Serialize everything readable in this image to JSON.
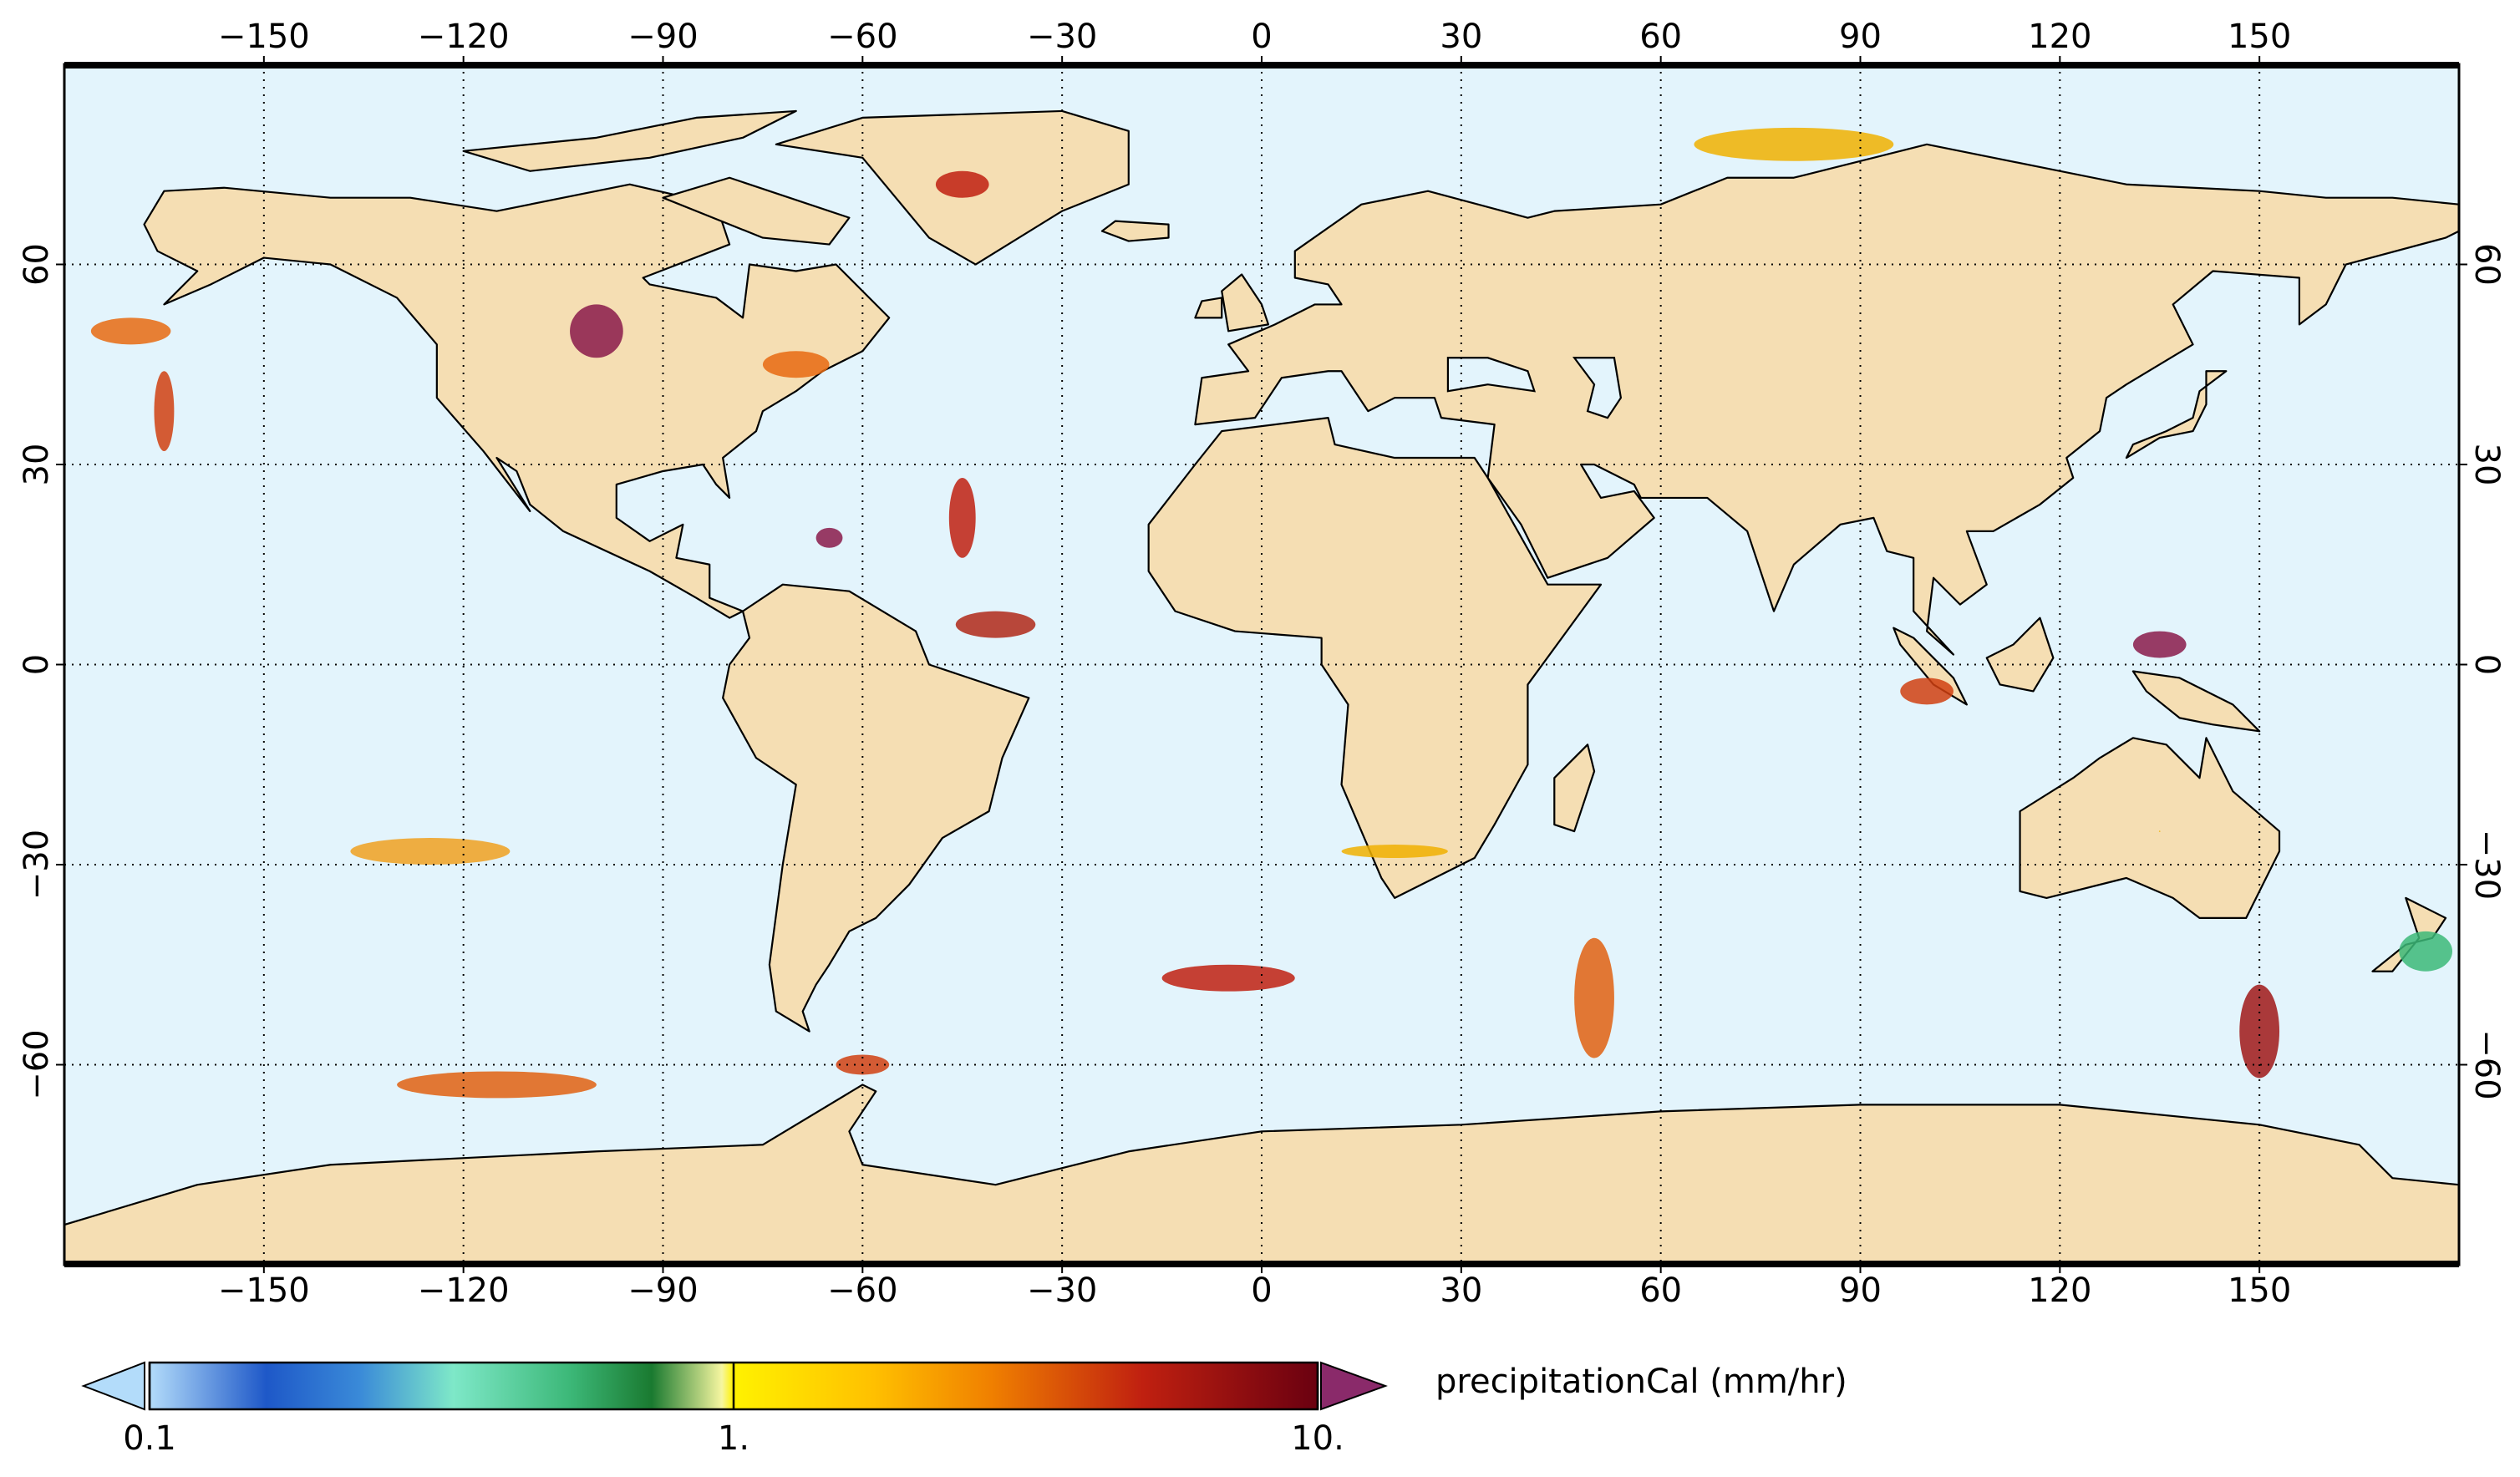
{
  "map": {
    "xlim": [
      -180,
      180
    ],
    "ylim": [
      -90,
      90
    ],
    "xticks": [
      {
        "value": -150,
        "label": "−150"
      },
      {
        "value": -120,
        "label": "−120"
      },
      {
        "value": -90,
        "label": "−90"
      },
      {
        "value": -60,
        "label": "−60"
      },
      {
        "value": -30,
        "label": "−30"
      },
      0,
      30,
      60,
      90,
      120,
      150
    ],
    "yticks": [
      {
        "value": -60,
        "label": "−60"
      },
      {
        "value": -30,
        "label": "−30"
      },
      0,
      30,
      60
    ]
  },
  "colorbar": {
    "title": "precipitationCal (mm/hr)",
    "scale": "log",
    "lim": [
      0.1,
      10
    ],
    "ticks": [
      {
        "value": 0.1,
        "label": "0.1"
      },
      {
        "value": 1,
        "label": "1."
      },
      {
        "value": 10,
        "label": "10."
      }
    ]
  }
}
